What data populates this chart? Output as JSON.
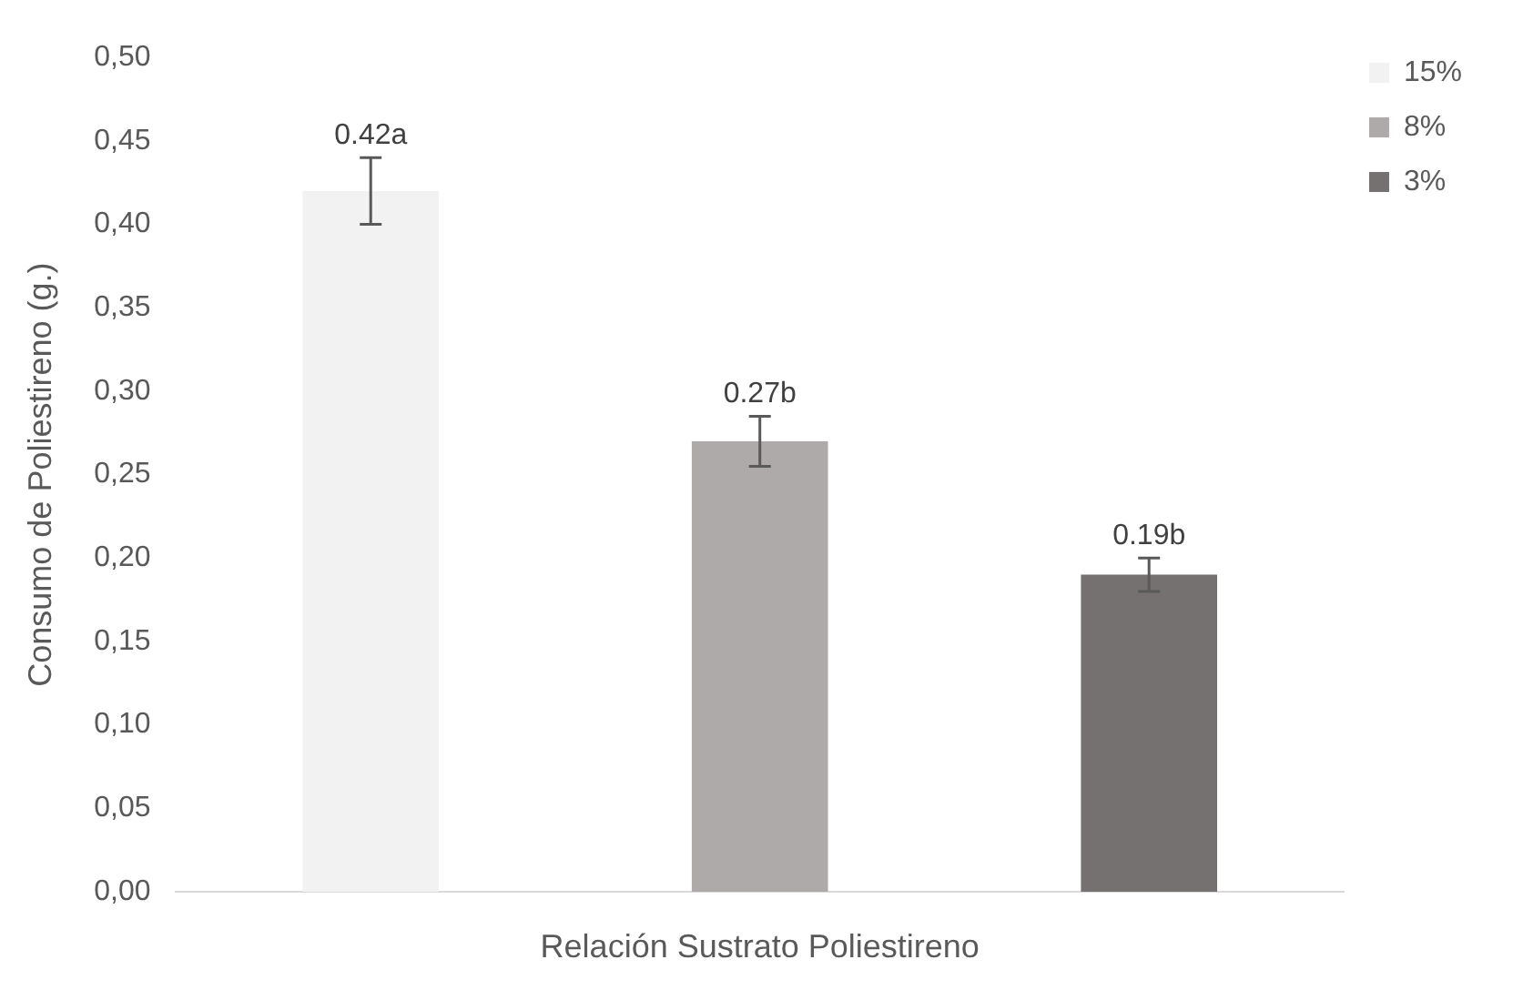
{
  "chart_data": {
    "type": "bar",
    "ylabel": "Consumo de Poliestireno (g.)",
    "xlabel": "Relación Sustrato Poliestireno",
    "categories": [
      null
    ],
    "series": [
      {
        "name": "15%",
        "color": "#f2f2f2",
        "values": [
          0.42
        ],
        "errors": [
          0.02
        ],
        "value_labels": [
          "0.42a"
        ]
      },
      {
        "name": "8%",
        "color": "#aeaaaa",
        "values": [
          0.27
        ],
        "errors": [
          0.015
        ],
        "value_labels": [
          "0.27b"
        ]
      },
      {
        "name": "3%",
        "color": "#767171",
        "values": [
          0.19
        ],
        "errors": [
          0.01
        ],
        "value_labels": [
          "0.19b"
        ]
      }
    ],
    "ylim": [
      0,
      0.5
    ],
    "yticks": [
      {
        "value": 0,
        "label": "0,00"
      },
      {
        "value": 0.05,
        "label": "0,05"
      },
      {
        "value": 0.1,
        "label": "0,10"
      },
      {
        "value": 0.15,
        "label": "0,15"
      },
      {
        "value": 0.2,
        "label": "0,20"
      },
      {
        "value": 0.25,
        "label": "0,25"
      },
      {
        "value": 0.3,
        "label": "0,30"
      },
      {
        "value": 0.35,
        "label": "0,35"
      },
      {
        "value": 0.4,
        "label": "0,40"
      },
      {
        "value": 0.45,
        "label": "0,45"
      },
      {
        "value": 0.5,
        "label": "0,50"
      }
    ],
    "grid": false,
    "legend": "top right"
  }
}
